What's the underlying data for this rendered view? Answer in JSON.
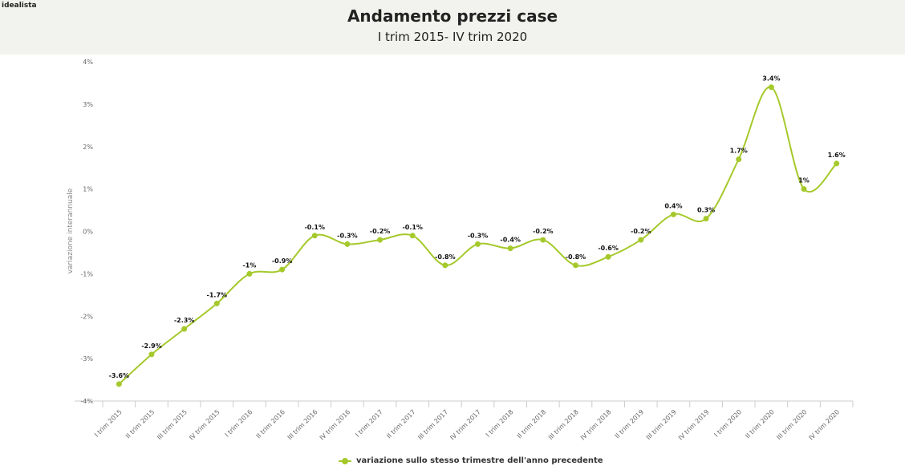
{
  "logo": "idealista",
  "chart_data": {
    "type": "line",
    "title": "Andamento prezzi case",
    "subtitle": "I trim 2015- IV trim 2020",
    "ylabel": "variazione interannuale",
    "xlabel": "",
    "ylim": [
      -4,
      4
    ],
    "yticks": [
      "4%",
      "3%",
      "2%",
      "1%",
      "0%",
      "-1%",
      "-2%",
      "-3%",
      "-4%"
    ],
    "grid": false,
    "legend_position": "bottom",
    "color": "#a5c92b",
    "categories": [
      "I trim 2015",
      "II trim 2015",
      "III trim 2015",
      "IV trim 2015",
      "I trim 2016",
      "II trim 2016",
      "III trim 2016",
      "IV trim 2016",
      "I trim 2017",
      "II trim 2017",
      "III trim 2017",
      "IV trim 2017",
      "I trim 2018",
      "II trim 2018",
      "III trim 2018",
      "IV trim 2018",
      "II trim 2019",
      "III trim 2019",
      "IV trim 2019",
      "I trim 2020",
      "II trim 2020",
      "III trim 2020",
      "IV trim 2020"
    ],
    "series": [
      {
        "name": "variazione sullo stesso trimestre dell'anno precedente",
        "values": [
          -3.6,
          -2.9,
          -2.3,
          -1.7,
          -1,
          -0.9,
          -0.1,
          -0.3,
          -0.2,
          -0.1,
          -0.8,
          -0.3,
          -0.4,
          -0.2,
          -0.8,
          -0.6,
          -0.2,
          0.4,
          0.3,
          1.7,
          3.4,
          1,
          1.6
        ],
        "labels": [
          "-3.6%",
          "-2.9%",
          "-2.3%",
          "-1.7%",
          "-1%",
          "-0.9%",
          "-0.1%",
          "-0.3%",
          "-0.2%",
          "-0.1%",
          "-0.8%",
          "-0.3%",
          "-0.4%",
          "-0.2%",
          "-0.8%",
          "-0.6%",
          "-0.2%",
          "0.4%",
          "0.3%",
          "1.7%",
          "3.4%",
          "1%",
          "1.6%"
        ]
      }
    ]
  }
}
